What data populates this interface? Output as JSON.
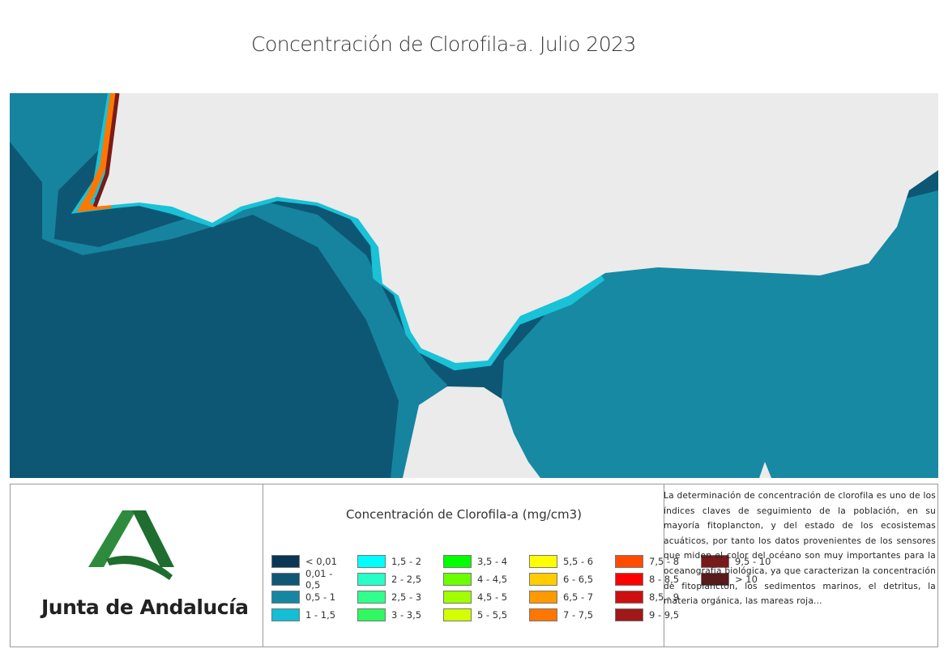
{
  "title": "Concentración de Clorofila-a. Julio 2023",
  "map": {
    "land_color": "#ebebeb",
    "deep_ocean_color": "#0d5775",
    "shelf_color": "#1789a3",
    "coast_color": "#19c2d6"
  },
  "logo": {
    "text": "Junta de Andalucía",
    "color": "#2e8b3e"
  },
  "legend": {
    "title": "Concentración de Clorofila-a (mg/cm3)",
    "items": [
      {
        "label": "< 0,01",
        "color": "#0a3555"
      },
      {
        "label": "0,01 - 0,5",
        "color": "#0f5775"
      },
      {
        "label": "0,5 - 1",
        "color": "#1587a3"
      },
      {
        "label": "1 - 1,5",
        "color": "#14bed4"
      },
      {
        "label": "1,5 - 2",
        "color": "#00ffff"
      },
      {
        "label": "2 - 2,5",
        "color": "#28ffc8"
      },
      {
        "label": "2,5 - 3",
        "color": "#30ff8c"
      },
      {
        "label": "3 - 3,5",
        "color": "#30f860"
      },
      {
        "label": "3,5 - 4",
        "color": "#00ff00"
      },
      {
        "label": "4 - 4,5",
        "color": "#6cff00"
      },
      {
        "label": "4,5 - 5",
        "color": "#a0ff00"
      },
      {
        "label": "5 - 5,5",
        "color": "#d4ff00"
      },
      {
        "label": "5,5 - 6",
        "color": "#ffff00"
      },
      {
        "label": "6 - 6,5",
        "color": "#ffcc00"
      },
      {
        "label": "6,5 - 7",
        "color": "#ff9900"
      },
      {
        "label": "7 - 7,5",
        "color": "#ff7700"
      },
      {
        "label": "7,5 - 8",
        "color": "#ff4c00"
      },
      {
        "label": "8 - 8,5",
        "color": "#ff0000"
      },
      {
        "label": "8,5 - 9",
        "color": "#cc1010"
      },
      {
        "label": "9 - 9,5",
        "color": "#a01818"
      },
      {
        "label": "9,5 - 10",
        "color": "#781a1a"
      },
      {
        "label": "> 10",
        "color": "#581a1a"
      }
    ]
  },
  "description": "La determinación de concentración de clorofila es uno de los índices claves de seguimiento de la población, en su mayoría fitoplancton, y del estado de los ecosistemas acuáticos, por tanto los datos provenientes de los sensores que miden el color del océano son muy importantes para la oceanografía biológica, ya que caracterizan la concentración de fitoplancton, los sedimentos marinos, el detritus, la materia orgánica, las mareas roja..."
}
